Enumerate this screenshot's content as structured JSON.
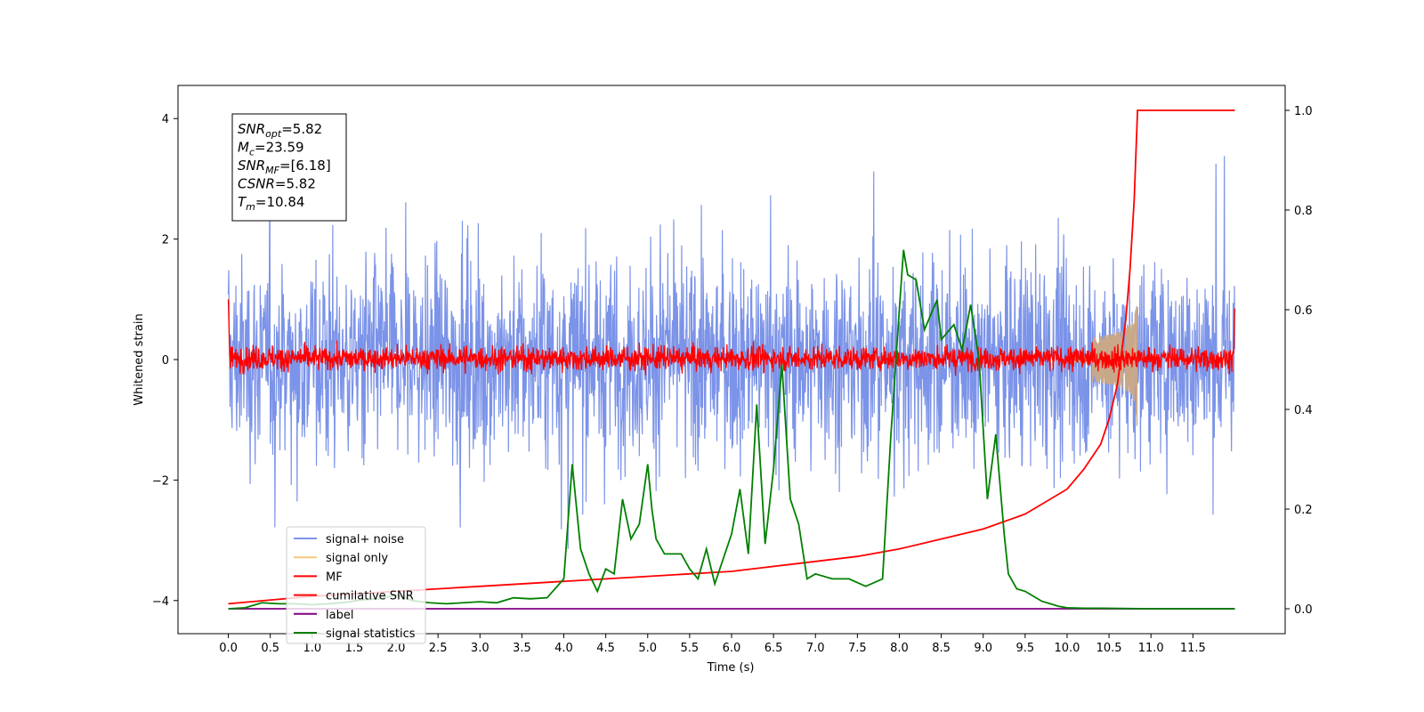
{
  "chart_data": {
    "type": "line",
    "title": "",
    "xlabel": "Time (s)",
    "ylabel": "Whitened strain",
    "xlim": [
      -0.6,
      12.6
    ],
    "ylim": [
      -4.55,
      4.55
    ],
    "ylim_right": [
      -0.05,
      1.05
    ],
    "x_ticks": [
      "0.0",
      "0.5",
      "1.0",
      "1.5",
      "2.0",
      "2.5",
      "3.0",
      "3.5",
      "4.0",
      "4.5",
      "5.0",
      "5.5",
      "6.0",
      "6.5",
      "7.0",
      "7.5",
      "8.0",
      "8.5",
      "9.0",
      "9.5",
      "10.0",
      "10.5",
      "11.0",
      "11.5"
    ],
    "y_ticks_left": [
      "−4",
      "−2",
      "0",
      "2",
      "4"
    ],
    "y_ticks_right": [
      "0.0",
      "0.2",
      "0.4",
      "0.6",
      "0.8",
      "1.0"
    ],
    "legend_position": "lower-left",
    "annotation": {
      "lines": [
        {
          "sym": "SNR",
          "sub": "opt",
          "val": "=5.82"
        },
        {
          "sym": "M",
          "sub": "c",
          "val": "=23.59"
        },
        {
          "sym": "SNR",
          "sub": "MF",
          "val": "=[6.18]"
        },
        {
          "sym": "CSNR",
          "sub": "",
          "val": "=5.82"
        },
        {
          "sym": "T",
          "sub": "m",
          "val": "=10.84"
        }
      ]
    },
    "series": [
      {
        "name": "signal+ noise",
        "color": "#7b93e8",
        "axis": "left",
        "style": "noise band",
        "range": [
          -3.9,
          4.1
        ],
        "x_range": [
          0.0,
          12.0
        ]
      },
      {
        "name": "signal only",
        "color": "#f5c97a",
        "axis": "left",
        "style": "chirp",
        "x_range": [
          10.0,
          10.84
        ],
        "peak_amplitude": 1.2
      },
      {
        "name": "MF",
        "color": "#ff0000",
        "axis": "left",
        "style": "noise band",
        "range": [
          -0.3,
          0.55
        ],
        "x_range": [
          0.0,
          12.0
        ]
      },
      {
        "name": "cumilative SNR",
        "color": "#ff0000",
        "axis": "right",
        "x": [
          0.0,
          1.0,
          2.0,
          3.0,
          4.0,
          5.0,
          6.0,
          7.0,
          7.5,
          8.0,
          8.5,
          9.0,
          9.5,
          10.0,
          10.2,
          10.4,
          10.5,
          10.6,
          10.7,
          10.75,
          10.8,
          10.84,
          12.0
        ],
        "y": [
          0.01,
          0.025,
          0.035,
          0.045,
          0.055,
          0.065,
          0.075,
          0.095,
          0.105,
          0.12,
          0.14,
          0.16,
          0.19,
          0.24,
          0.28,
          0.33,
          0.38,
          0.45,
          0.58,
          0.68,
          0.82,
          1.0,
          1.0
        ]
      },
      {
        "name": "label",
        "color": "#800080",
        "axis": "right",
        "x": [
          0.0,
          12.0
        ],
        "y": [
          0.0,
          0.0
        ]
      },
      {
        "name": "signal statistics",
        "color": "#008000",
        "axis": "right",
        "x": [
          0.0,
          0.2,
          0.4,
          0.6,
          0.8,
          1.0,
          1.2,
          1.4,
          1.6,
          1.8,
          2.0,
          2.2,
          2.4,
          2.6,
          2.8,
          3.0,
          3.2,
          3.4,
          3.6,
          3.8,
          4.0,
          4.1,
          4.2,
          4.3,
          4.4,
          4.5,
          4.6,
          4.7,
          4.8,
          4.9,
          5.0,
          5.05,
          5.1,
          5.2,
          5.3,
          5.4,
          5.5,
          5.6,
          5.7,
          5.8,
          5.9,
          6.0,
          6.1,
          6.2,
          6.3,
          6.4,
          6.5,
          6.6,
          6.7,
          6.8,
          6.9,
          7.0,
          7.2,
          7.4,
          7.6,
          7.8,
          7.9,
          8.0,
          8.05,
          8.1,
          8.2,
          8.3,
          8.45,
          8.5,
          8.65,
          8.75,
          8.85,
          8.95,
          9.05,
          9.15,
          9.2,
          9.25,
          9.3,
          9.4,
          9.5,
          9.6,
          9.7,
          9.8,
          9.9,
          10.0,
          10.2,
          10.4,
          11.0,
          12.0
        ],
        "y": [
          0.0,
          0.002,
          0.012,
          0.01,
          0.01,
          0.008,
          0.01,
          0.013,
          0.018,
          0.02,
          0.028,
          0.016,
          0.012,
          0.01,
          0.012,
          0.014,
          0.012,
          0.022,
          0.02,
          0.022,
          0.06,
          0.29,
          0.12,
          0.07,
          0.035,
          0.08,
          0.07,
          0.22,
          0.14,
          0.17,
          0.29,
          0.2,
          0.14,
          0.11,
          0.11,
          0.11,
          0.08,
          0.06,
          0.12,
          0.05,
          0.1,
          0.15,
          0.24,
          0.11,
          0.41,
          0.13,
          0.28,
          0.49,
          0.22,
          0.17,
          0.06,
          0.07,
          0.06,
          0.06,
          0.045,
          0.06,
          0.35,
          0.6,
          0.72,
          0.67,
          0.66,
          0.56,
          0.62,
          0.54,
          0.57,
          0.52,
          0.61,
          0.5,
          0.22,
          0.35,
          0.25,
          0.15,
          0.07,
          0.04,
          0.035,
          0.025,
          0.015,
          0.01,
          0.005,
          0.002,
          0.001,
          0.001,
          0.0,
          0.0
        ]
      }
    ]
  }
}
